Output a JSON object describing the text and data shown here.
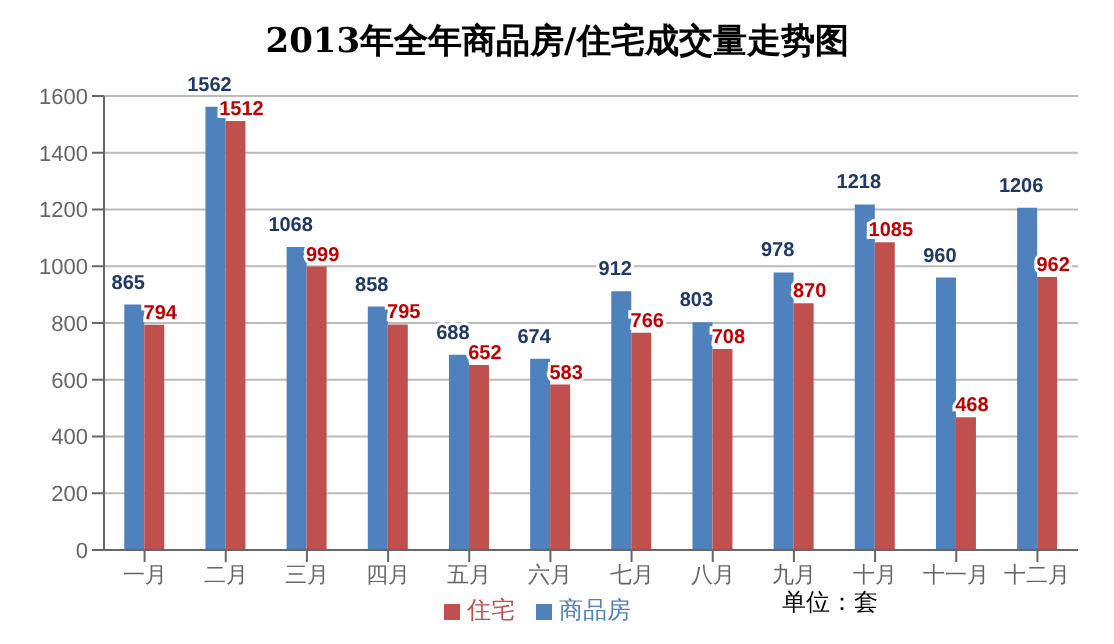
{
  "chart_data": {
    "type": "bar",
    "title": "2013年全年商品房/住宅成交量走势图",
    "categories": [
      "一月",
      "二月",
      "三月",
      "四月",
      "五月",
      "六月",
      "七月",
      "八月",
      "九月",
      "十月",
      "十一月",
      "十二月"
    ],
    "series": [
      {
        "name": "商品房",
        "color": "#4f81bd",
        "values": [
          865,
          1562,
          1068,
          858,
          688,
          674,
          912,
          803,
          978,
          1218,
          960,
          1206
        ]
      },
      {
        "name": "住宅",
        "color": "#c0504d",
        "values": [
          794,
          1512,
          999,
          795,
          652,
          583,
          766,
          708,
          870,
          1085,
          468,
          962
        ]
      }
    ],
    "ylim": [
      0,
      1600
    ],
    "yticks": [
      0,
      200,
      400,
      600,
      800,
      1000,
      1200,
      1400,
      1600
    ],
    "grid": "y",
    "legend": "bottom",
    "data_labels": true,
    "annotations": [
      "单位：套"
    ]
  }
}
